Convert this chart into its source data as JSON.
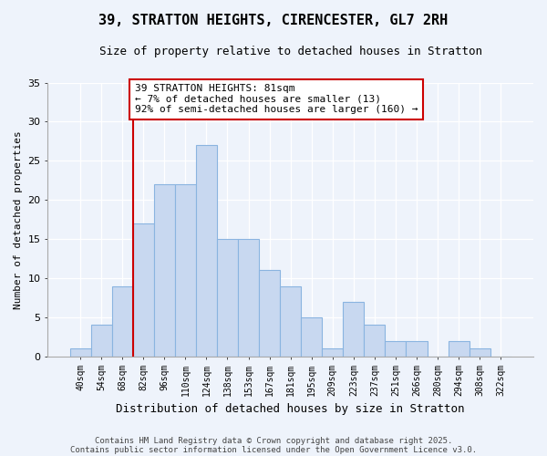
{
  "title": "39, STRATTON HEIGHTS, CIRENCESTER, GL7 2RH",
  "subtitle": "Size of property relative to detached houses in Stratton",
  "xlabel": "Distribution of detached houses by size in Stratton",
  "ylabel": "Number of detached properties",
  "bar_labels": [
    "40sqm",
    "54sqm",
    "68sqm",
    "82sqm",
    "96sqm",
    "110sqm",
    "124sqm",
    "138sqm",
    "153sqm",
    "167sqm",
    "181sqm",
    "195sqm",
    "209sqm",
    "223sqm",
    "237sqm",
    "251sqm",
    "266sqm",
    "280sqm",
    "294sqm",
    "308sqm",
    "322sqm"
  ],
  "bar_counts": [
    1,
    4,
    9,
    17,
    22,
    22,
    27,
    15,
    15,
    11,
    9,
    5,
    1,
    7,
    4,
    2,
    2,
    0,
    2,
    1,
    0
  ],
  "bar_color": "#c8d8f0",
  "bar_edge_color": "#8ab4e0",
  "vline_color": "#cc0000",
  "annotation_title": "39 STRATTON HEIGHTS: 81sqm",
  "annotation_line1": "← 7% of detached houses are smaller (13)",
  "annotation_line2": "92% of semi-detached houses are larger (160) →",
  "annotation_box_color": "#ffffff",
  "annotation_box_edge": "#cc0000",
  "ylim": [
    0,
    35
  ],
  "yticks": [
    0,
    5,
    10,
    15,
    20,
    25,
    30,
    35
  ],
  "footnote1": "Contains HM Land Registry data © Crown copyright and database right 2025.",
  "footnote2": "Contains public sector information licensed under the Open Government Licence v3.0.",
  "background_color": "#eef3fb",
  "grid_color": "#ffffff",
  "title_fontsize": 11,
  "subtitle_fontsize": 9,
  "ylabel_fontsize": 8,
  "xlabel_fontsize": 9,
  "ytick_fontsize": 8,
  "xtick_fontsize": 7,
  "annotation_fontsize": 8,
  "footnote_fontsize": 6.5
}
